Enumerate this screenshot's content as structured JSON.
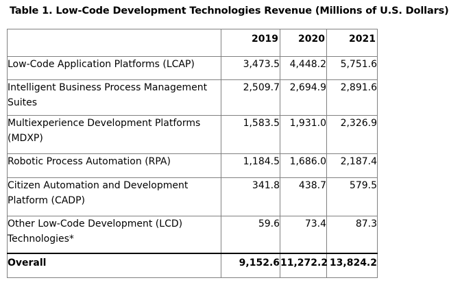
{
  "table": {
    "title": "Table 1. Low-Code Development Technologies Revenue (Millions of U.S. Dollars)",
    "headers": [
      "",
      "2019",
      "2020",
      "2021"
    ],
    "rows": [
      {
        "label": "Low-Code Application Platforms (LCAP)",
        "v2019": "3,473.5",
        "v2020": "4,448.2",
        "v2021": "5,751.6"
      },
      {
        "label": "Intelligent Business Process Management Suites",
        "v2019": "2,509.7",
        "v2020": "2,694.9",
        "v2021": "2,891.6"
      },
      {
        "label": "Multiexperience Development Platforms (MDXP)",
        "v2019": "1,583.5",
        "v2020": "1,931.0",
        "v2021": "2,326.9"
      },
      {
        "label": "Robotic Process Automation (RPA)",
        "v2019": "1,184.5",
        "v2020": "1,686.0",
        "v2021": "2,187.4"
      },
      {
        "label": "Citizen Automation and Development Platform (CADP)",
        "v2019": "341.8",
        "v2020": "438.7",
        "v2021": "579.5"
      },
      {
        "label": "Other Low-Code Development (LCD) Technologies*",
        "v2019": "59.6",
        "v2020": "73.4",
        "v2021": "87.3"
      }
    ],
    "total": {
      "label": "Overall",
      "v2019": "9,152.6",
      "v2020": "11,272.2",
      "v2021": "13,824.2"
    }
  }
}
